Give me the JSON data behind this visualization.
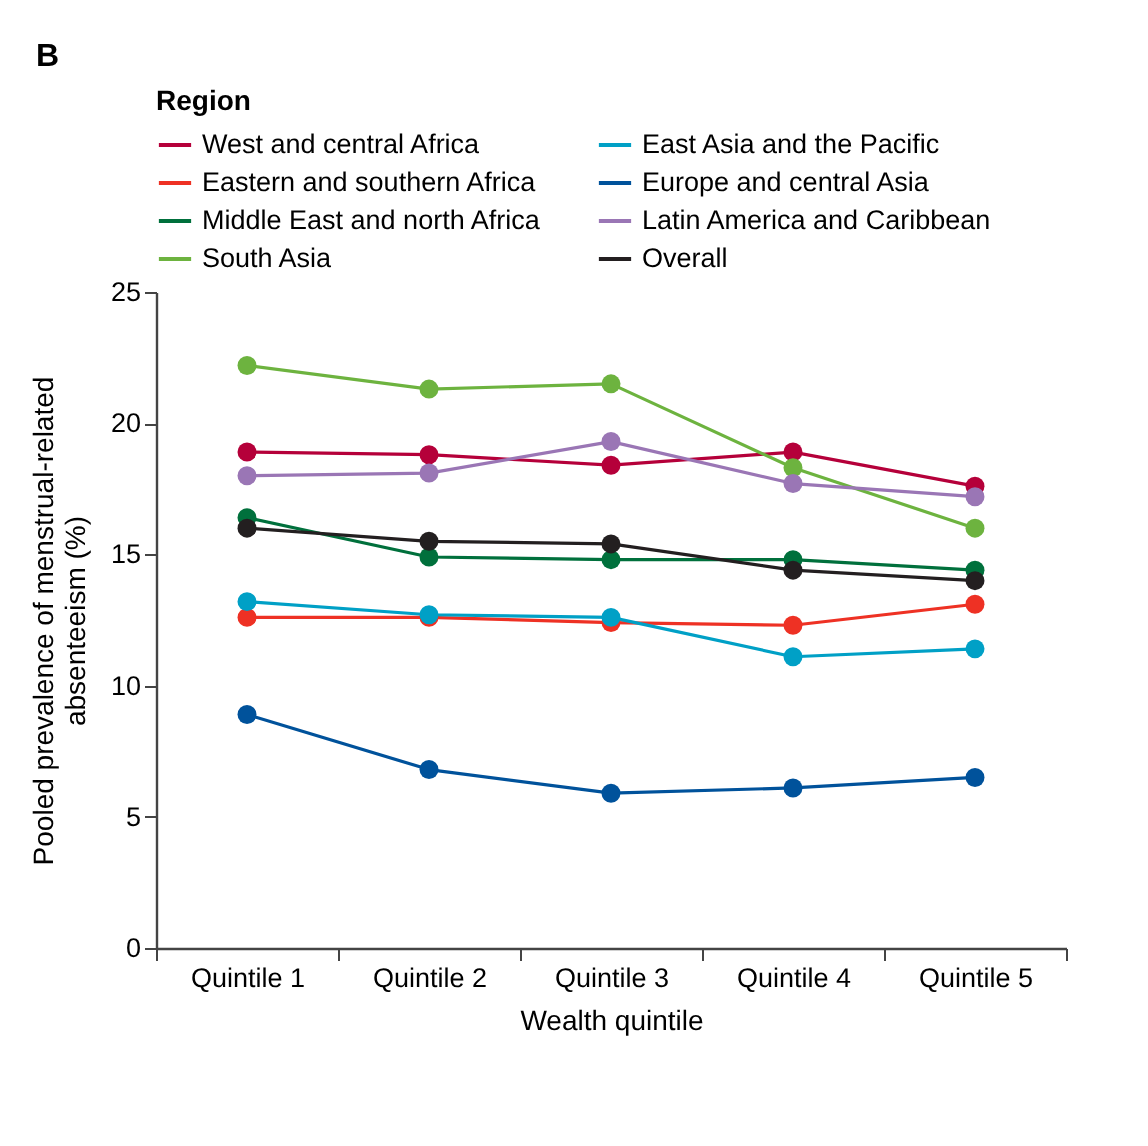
{
  "chart_data": {
    "type": "line",
    "title": "B",
    "xlabel": "Wealth quintile",
    "ylabel": "Pooled prevalence of menstrual-related absenteeism (%)",
    "legend_title": "Region",
    "categories": [
      "Quintile 1",
      "Quintile 2",
      "Quintile 3",
      "Quintile 4",
      "Quintile 5"
    ],
    "series": [
      {
        "name": "West and central Africa",
        "color": "#b5003a",
        "values": [
          18.9,
          18.8,
          18.4,
          18.9,
          17.6
        ]
      },
      {
        "name": "Eastern and southern Africa",
        "color": "#ee3124",
        "values": [
          12.6,
          12.6,
          12.4,
          12.3,
          13.1
        ]
      },
      {
        "name": "Middle East and north Africa",
        "color": "#00703c",
        "values": [
          16.4,
          14.9,
          14.8,
          14.8,
          14.4
        ]
      },
      {
        "name": "South Asia",
        "color": "#6db33f",
        "values": [
          22.2,
          21.3,
          21.5,
          18.3,
          16.0
        ]
      },
      {
        "name": "East Asia and the Pacific",
        "color": "#00a0c6",
        "values": [
          13.2,
          12.7,
          12.6,
          11.1,
          11.4
        ]
      },
      {
        "name": "Europe and central Asia",
        "color": "#00529b",
        "values": [
          8.9,
          6.8,
          5.9,
          6.1,
          6.5
        ]
      },
      {
        "name": "Latin America and Caribbean",
        "color": "#9a76b5",
        "values": [
          18.0,
          18.1,
          19.3,
          17.7,
          17.2
        ]
      },
      {
        "name": "Overall",
        "color": "#231f20",
        "values": [
          16.0,
          15.5,
          15.4,
          14.4,
          14.0
        ]
      }
    ],
    "ylim": [
      0,
      25
    ],
    "yticks": [
      0,
      5,
      10,
      15,
      20,
      25
    ],
    "grid": false,
    "legend": "top left",
    "marker": "circle",
    "line_style": "solid"
  }
}
